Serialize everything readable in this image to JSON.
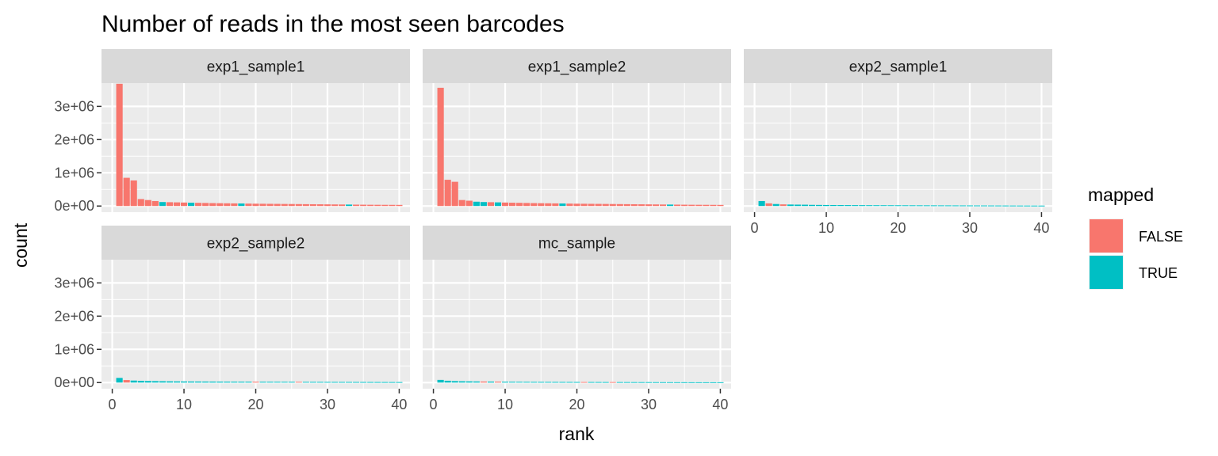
{
  "chart_data": {
    "type": "bar",
    "title": "Number of reads in the most seen barcodes",
    "xlabel": "rank",
    "ylabel": "count",
    "xlim": [
      0,
      40
    ],
    "ylim": [
      0,
      3700000
    ],
    "x_ticks": [
      0,
      10,
      20,
      30,
      40
    ],
    "x_tick_labels": [
      "0",
      "10",
      "20",
      "30",
      "40"
    ],
    "y_ticks": [
      0,
      1000000,
      2000000,
      3000000
    ],
    "y_tick_labels": [
      "0e+00",
      "1e+06",
      "2e+06",
      "3e+06"
    ],
    "grid": true,
    "legend": {
      "title": "mapped",
      "position": "right",
      "entries": [
        {
          "label": "FALSE",
          "color": "#F8766D"
        },
        {
          "label": "TRUE",
          "color": "#00BFC4"
        }
      ]
    },
    "colors": {
      "FALSE": "#F8766D",
      "TRUE": "#00BFC4"
    },
    "panels": [
      {
        "name": "exp1_sample1",
        "ranks": [
          1,
          2,
          3,
          4,
          5,
          6,
          7,
          8,
          9,
          10,
          11,
          12,
          13,
          14,
          15,
          16,
          17,
          18,
          19,
          20,
          21,
          22,
          23,
          24,
          25,
          26,
          27,
          28,
          29,
          30,
          31,
          32,
          33,
          34,
          35,
          36,
          37,
          38,
          39,
          40
        ],
        "counts": [
          3680000,
          850000,
          770000,
          210000,
          180000,
          150000,
          120000,
          115000,
          110000,
          105000,
          100000,
          96000,
          92000,
          88000,
          85000,
          82000,
          79000,
          76000,
          73000,
          70000,
          68000,
          66000,
          64000,
          62000,
          60000,
          58000,
          56000,
          54000,
          52000,
          50000,
          48000,
          46000,
          44000,
          42000,
          40000,
          38000,
          37000,
          36000,
          35000,
          34000
        ],
        "mapped": [
          false,
          false,
          false,
          false,
          false,
          false,
          true,
          false,
          false,
          false,
          true,
          false,
          false,
          false,
          false,
          false,
          false,
          true,
          false,
          false,
          false,
          false,
          false,
          false,
          false,
          false,
          false,
          false,
          false,
          false,
          false,
          false,
          true,
          false,
          false,
          false,
          false,
          false,
          false,
          false
        ]
      },
      {
        "name": "exp1_sample2",
        "ranks": [
          1,
          2,
          3,
          4,
          5,
          6,
          7,
          8,
          9,
          10,
          11,
          12,
          13,
          14,
          15,
          16,
          17,
          18,
          19,
          20,
          21,
          22,
          23,
          24,
          25,
          26,
          27,
          28,
          29,
          30,
          31,
          32,
          33,
          34,
          35,
          36,
          37,
          38,
          39,
          40
        ],
        "counts": [
          3560000,
          790000,
          730000,
          180000,
          160000,
          130000,
          120000,
          115000,
          110000,
          105000,
          100000,
          96000,
          92000,
          88000,
          85000,
          82000,
          79000,
          76000,
          73000,
          70000,
          68000,
          66000,
          64000,
          62000,
          60000,
          58000,
          56000,
          54000,
          52000,
          50000,
          48000,
          46000,
          44000,
          42000,
          40000,
          38000,
          37000,
          36000,
          35000,
          34000
        ],
        "mapped": [
          false,
          false,
          false,
          false,
          false,
          true,
          true,
          false,
          true,
          false,
          false,
          false,
          false,
          false,
          false,
          false,
          false,
          true,
          false,
          false,
          false,
          false,
          false,
          false,
          false,
          false,
          false,
          false,
          false,
          false,
          false,
          false,
          true,
          false,
          false,
          false,
          false,
          false,
          false,
          false
        ]
      },
      {
        "name": "exp2_sample1",
        "ranks": [
          1,
          2,
          3,
          4,
          5,
          6,
          7,
          8,
          9,
          10,
          11,
          12,
          13,
          14,
          15,
          16,
          17,
          18,
          19,
          20,
          21,
          22,
          23,
          24,
          25,
          26,
          27,
          28,
          29,
          30,
          31,
          32,
          33,
          34,
          35,
          36,
          37,
          38,
          39,
          40
        ],
        "counts": [
          150000,
          80000,
          60000,
          50000,
          45000,
          42000,
          40000,
          35000,
          33000,
          31000,
          30000,
          29000,
          28000,
          27000,
          26000,
          25000,
          24500,
          24000,
          23500,
          23000,
          22500,
          22000,
          21500,
          21000,
          20500,
          20000,
          19500,
          19000,
          18500,
          18000,
          17500,
          17000,
          16500,
          16000,
          15500,
          15000,
          14500,
          14000,
          13500,
          13000
        ],
        "mapped": [
          true,
          false,
          true,
          false,
          true,
          true,
          true,
          true,
          true,
          true,
          true,
          true,
          true,
          true,
          true,
          true,
          true,
          true,
          true,
          true,
          true,
          true,
          true,
          true,
          true,
          true,
          true,
          true,
          true,
          true,
          true,
          true,
          true,
          true,
          true,
          true,
          true,
          true,
          true,
          true
        ]
      },
      {
        "name": "exp2_sample2",
        "ranks": [
          1,
          2,
          3,
          4,
          5,
          6,
          7,
          8,
          9,
          10,
          11,
          12,
          13,
          14,
          15,
          16,
          17,
          18,
          19,
          20,
          21,
          22,
          23,
          24,
          25,
          26,
          27,
          28,
          29,
          30,
          31,
          32,
          33,
          34,
          35,
          36,
          37,
          38,
          39,
          40
        ],
        "counts": [
          140000,
          75000,
          60000,
          52000,
          47000,
          44000,
          41000,
          38000,
          36000,
          34000,
          33000,
          32000,
          31000,
          30000,
          29000,
          28000,
          27500,
          27000,
          26500,
          26000,
          25500,
          25000,
          24500,
          24000,
          23500,
          23000,
          22500,
          22000,
          21500,
          21000,
          20500,
          20000,
          19500,
          19000,
          18500,
          18000,
          17500,
          17000,
          16500,
          16000
        ],
        "mapped": [
          true,
          false,
          true,
          true,
          true,
          true,
          true,
          true,
          true,
          true,
          true,
          true,
          true,
          true,
          true,
          true,
          true,
          true,
          true,
          false,
          true,
          true,
          true,
          true,
          true,
          false,
          true,
          true,
          true,
          true,
          true,
          true,
          true,
          true,
          true,
          true,
          true,
          true,
          true,
          true
        ]
      },
      {
        "name": "mc_sample",
        "ranks": [
          1,
          2,
          3,
          4,
          5,
          6,
          7,
          8,
          9,
          10,
          11,
          12,
          13,
          14,
          15,
          16,
          17,
          18,
          19,
          20,
          21,
          22,
          23,
          24,
          25,
          26,
          27,
          28,
          29,
          30,
          31,
          32,
          33,
          34,
          35,
          36,
          37,
          38,
          39,
          40
        ],
        "counts": [
          80000,
          55000,
          45000,
          40000,
          37000,
          34000,
          32000,
          30000,
          28000,
          26000,
          25000,
          24000,
          23000,
          22000,
          21500,
          21000,
          20500,
          20000,
          19500,
          19000,
          18500,
          18000,
          17500,
          17000,
          16500,
          16000,
          15500,
          15000,
          14500,
          14000,
          13500,
          13000,
          12500,
          12000,
          11500,
          11000,
          10800,
          10600,
          10400,
          10200
        ],
        "mapped": [
          true,
          true,
          true,
          true,
          true,
          true,
          false,
          true,
          false,
          true,
          true,
          true,
          true,
          true,
          true,
          true,
          true,
          true,
          true,
          true,
          false,
          true,
          true,
          true,
          false,
          true,
          true,
          true,
          true,
          true,
          true,
          true,
          true,
          true,
          true,
          true,
          true,
          true,
          true,
          true
        ]
      }
    ]
  }
}
